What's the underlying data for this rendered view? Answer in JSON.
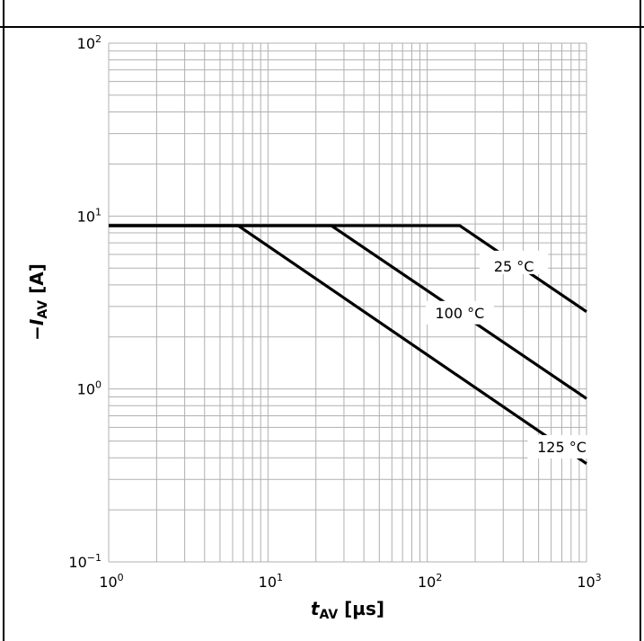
{
  "chart_data": {
    "type": "line",
    "x_scale": "log",
    "y_scale": "log",
    "xlim": [
      1,
      1000
    ],
    "ylim": [
      0.1,
      100
    ],
    "x_ticks": [
      {
        "base": "10",
        "exp": "0"
      },
      {
        "base": "10",
        "exp": "1"
      },
      {
        "base": "10",
        "exp": "2"
      },
      {
        "base": "10",
        "exp": "3"
      }
    ],
    "y_ticks": [
      {
        "base": "10",
        "exp": "−1"
      },
      {
        "base": "10",
        "exp": "0"
      },
      {
        "base": "10",
        "exp": "1"
      },
      {
        "base": "10",
        "exp": "2"
      }
    ],
    "xlabel": {
      "var": "t",
      "sub": "AV",
      "unit": " [µs]"
    },
    "ylabel": {
      "prefix": "−",
      "var": "I",
      "sub": "AV",
      "unit": " [A]"
    },
    "grid": true,
    "series": [
      {
        "name": "25 °C",
        "x": [
          1,
          160,
          1000
        ],
        "y": [
          8.8,
          8.8,
          2.8
        ]
      },
      {
        "name": "100 °C",
        "x": [
          1,
          25,
          1000
        ],
        "y": [
          8.8,
          8.8,
          0.88
        ]
      },
      {
        "name": "125 °C",
        "x": [
          1,
          6.5,
          1000
        ],
        "y": [
          8.8,
          8.8,
          0.37
        ]
      }
    ],
    "line_color": "#000000",
    "grid_color": "#b0b0b0"
  }
}
